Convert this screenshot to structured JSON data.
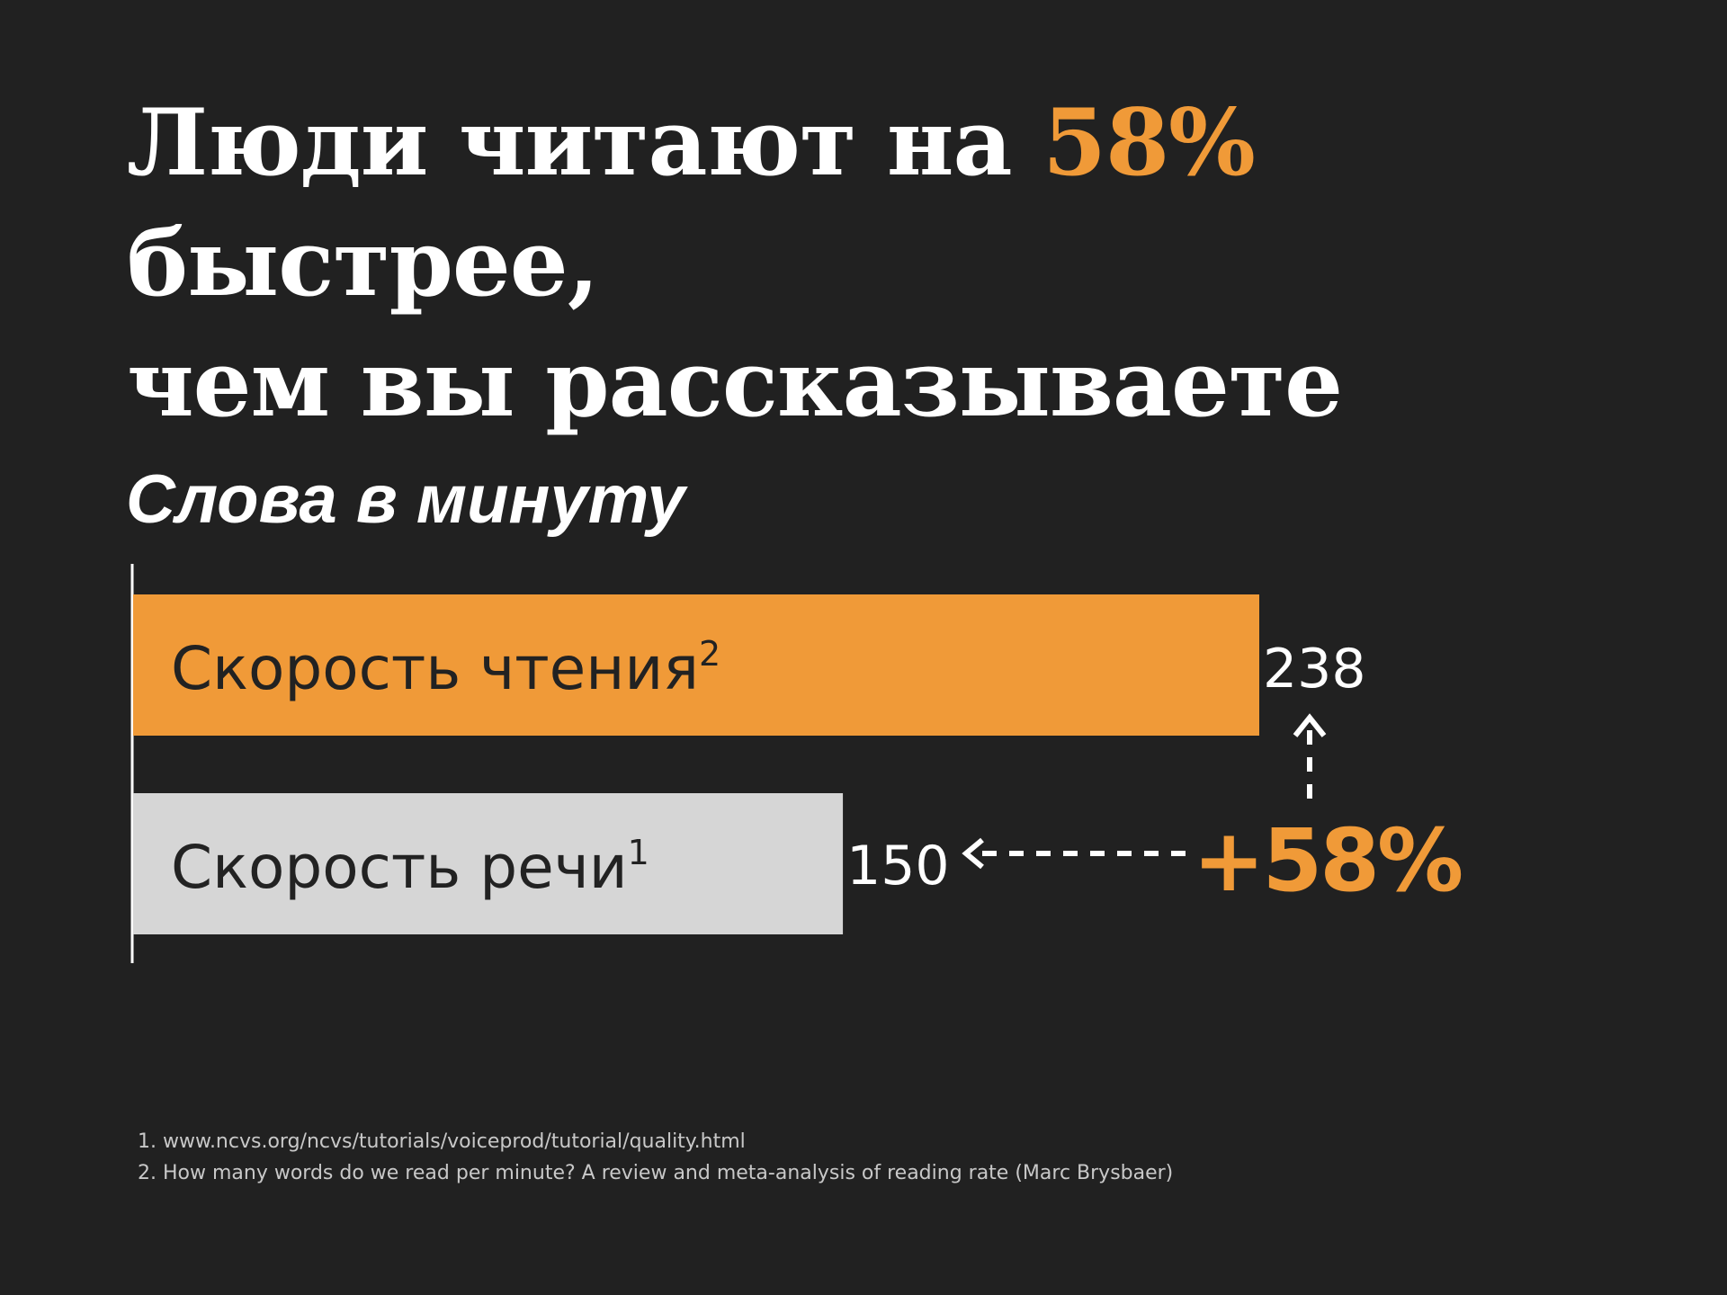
{
  "title": {
    "part1": "Люди читают на ",
    "highlight": "58%",
    "part2": " быстрее,",
    "line2": "чем вы рассказываете"
  },
  "colors": {
    "background": "#212121",
    "accent": "#f09a38",
    "secondary_bar": "#d6d6d6",
    "text": "#ffffff"
  },
  "chart_data": {
    "type": "bar",
    "orientation": "horizontal",
    "title": "Слова в минуту",
    "categories": [
      "Скорость чтения",
      "Скорость речи"
    ],
    "superscripts": [
      "2",
      "1"
    ],
    "values": [
      238,
      150
    ],
    "value_labels": [
      "238",
      "150"
    ],
    "xlim": [
      0,
      238
    ],
    "annotation": "+58%",
    "grid": false
  },
  "footnotes": [
    "1.  www.ncvs.org/ncvs/tutorials/voiceprod/tutorial/quality.html",
    "2.  How many words do we read per minute? A review and meta-analysis of reading rate (Marc Brysbaer)"
  ]
}
